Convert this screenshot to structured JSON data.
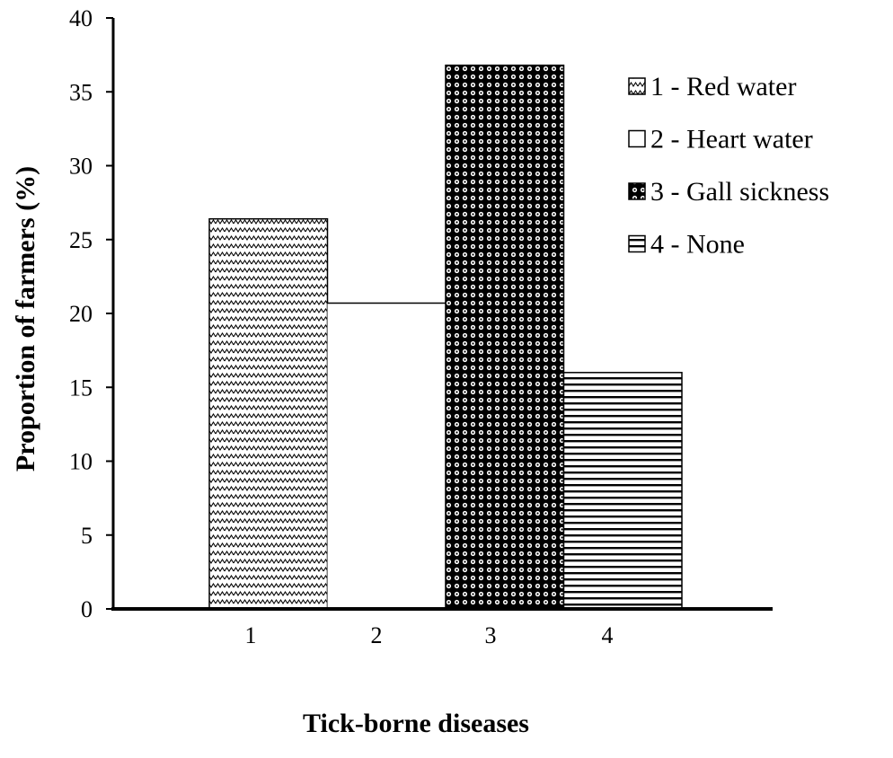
{
  "chart_data": {
    "type": "bar",
    "categories": [
      "1",
      "2",
      "3",
      "4"
    ],
    "values": [
      26.4,
      20.7,
      36.8,
      16.0
    ],
    "xlabel": "Tick-borne diseases",
    "ylabel": "Proportion of farmers (%)",
    "ylim": [
      0,
      40
    ],
    "yticks": [
      "0",
      "5",
      "10",
      "15",
      "20",
      "25",
      "30",
      "35",
      "40"
    ],
    "grid": false,
    "legend_position": "top-right",
    "legend": [
      {
        "label": "1 - Red water",
        "pattern": "zigzag"
      },
      {
        "label": "2 - Heart water",
        "pattern": "white"
      },
      {
        "label": "3 - Gall sickness",
        "pattern": "dots"
      },
      {
        "label": "4 - None",
        "pattern": "horizontal-lines"
      }
    ],
    "colors": {
      "ink": "#000000",
      "background": "#ffffff"
    }
  }
}
